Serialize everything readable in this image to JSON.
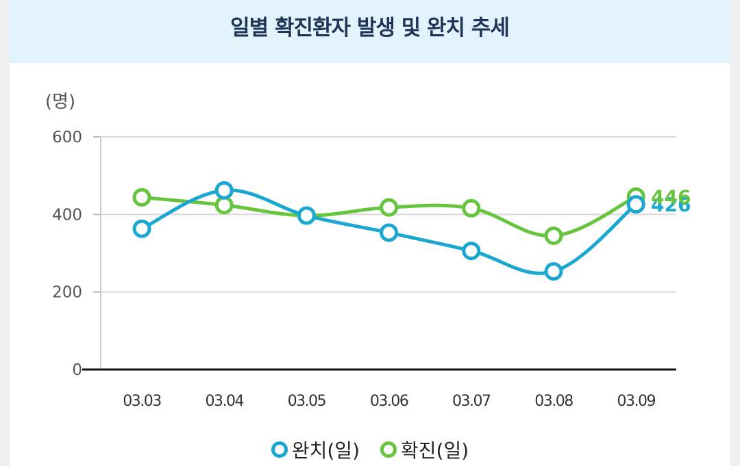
{
  "chart_data": {
    "type": "line",
    "title": "일별 확진환자 발생 및 완치 추세",
    "unit_label": "(명)",
    "categories": [
      "03.03",
      "03.04",
      "03.05",
      "03.06",
      "03.07",
      "03.08",
      "03.09"
    ],
    "ylim": [
      0,
      600
    ],
    "yticks": [
      0,
      200,
      400,
      600
    ],
    "grid": true,
    "legend_position": "bottom",
    "series": [
      {
        "name": "완치(일)",
        "values": [
          363,
          462,
          397,
          353,
          306,
          253,
          426
        ],
        "color": "#1aa7d1",
        "end_label": "426"
      },
      {
        "name": "확진(일)",
        "values": [
          444,
          424,
          397,
          418,
          416,
          345,
          446
        ],
        "color": "#66c43d",
        "end_label": "446"
      }
    ]
  }
}
